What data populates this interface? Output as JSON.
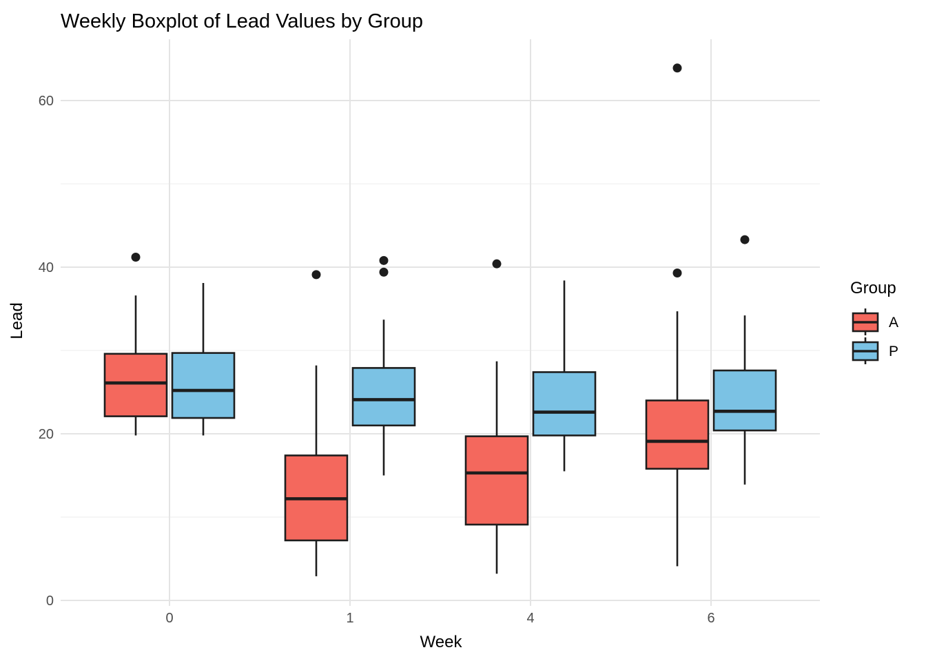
{
  "title": "Weekly Boxplot of Lead Values by Group",
  "axes": {
    "x_label": "Week",
    "y_label": "Lead",
    "x_tick_labels": [
      "0",
      "1",
      "4",
      "6"
    ],
    "y_tick_labels": [
      "0",
      "20",
      "40",
      "60"
    ],
    "y_major": [
      0,
      20,
      40,
      60
    ],
    "y_minor": [
      10,
      30,
      50
    ]
  },
  "legend": {
    "title": "Group",
    "entries": [
      {
        "label": "A",
        "color": "#f4685d"
      },
      {
        "label": "P",
        "color": "#7bc2e4"
      }
    ]
  },
  "style": {
    "box_border": "#1d1d1d",
    "median_color": "#1d1d1d",
    "whisker_color": "#1d1d1d",
    "outlier_color": "#1d1d1d",
    "grid_major": "#e4e4e4",
    "grid_minor": "#f1f1f1",
    "tick_label_color": "#4d4d4d",
    "background": "#ffffff"
  },
  "chart_data": {
    "type": "boxplot",
    "title": "Weekly Boxplot of Lead Values by Group",
    "xlabel": "Week",
    "ylabel": "Lead",
    "categories": [
      "0",
      "1",
      "4",
      "6"
    ],
    "ylim": [
      -0.7,
      67.4
    ],
    "y_major_ticks": [
      0,
      20,
      40,
      60
    ],
    "y_minor_gridlines": [
      10,
      30,
      50
    ],
    "grid": true,
    "legend_position": "right",
    "series": [
      {
        "name": "A",
        "color": "#f4685d",
        "boxes": [
          {
            "week": "0",
            "lower_whisker": 19.8,
            "q1": 22.1,
            "median": 26.1,
            "q3": 29.6,
            "upper_whisker": 36.6,
            "outliers": [
              41.2
            ]
          },
          {
            "week": "1",
            "lower_whisker": 2.9,
            "q1": 7.2,
            "median": 12.2,
            "q3": 17.4,
            "upper_whisker": 28.2,
            "outliers": [
              39.1
            ]
          },
          {
            "week": "4",
            "lower_whisker": 3.2,
            "q1": 9.1,
            "median": 15.3,
            "q3": 19.7,
            "upper_whisker": 28.7,
            "outliers": [
              40.4
            ]
          },
          {
            "week": "6",
            "lower_whisker": 4.1,
            "q1": 15.8,
            "median": 19.1,
            "q3": 24.0,
            "upper_whisker": 34.7,
            "outliers": [
              63.9,
              39.3
            ]
          }
        ]
      },
      {
        "name": "P",
        "color": "#7bc2e4",
        "boxes": [
          {
            "week": "0",
            "lower_whisker": 19.8,
            "q1": 21.9,
            "median": 25.2,
            "q3": 29.7,
            "upper_whisker": 38.1,
            "outliers": []
          },
          {
            "week": "1",
            "lower_whisker": 15.0,
            "q1": 21.0,
            "median": 24.1,
            "q3": 27.9,
            "upper_whisker": 33.7,
            "outliers": [
              40.8,
              39.4
            ]
          },
          {
            "week": "4",
            "lower_whisker": 15.5,
            "q1": 19.8,
            "median": 22.6,
            "q3": 27.4,
            "upper_whisker": 38.4,
            "outliers": []
          },
          {
            "week": "6",
            "lower_whisker": 13.9,
            "q1": 20.4,
            "median": 22.7,
            "q3": 27.6,
            "upper_whisker": 34.2,
            "outliers": [
              43.3
            ]
          }
        ]
      }
    ]
  }
}
